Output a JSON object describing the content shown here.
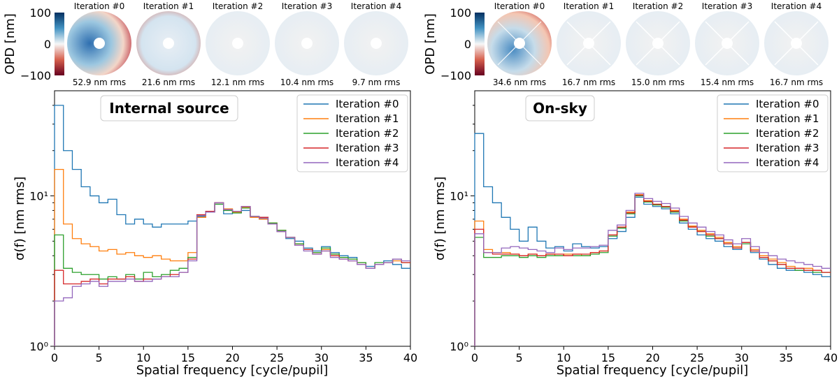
{
  "colors": {
    "iter0": "#1f77b4",
    "iter1": "#ff7f0e",
    "iter2": "#2ca02c",
    "iter3": "#d62728",
    "iter4": "#9467bd",
    "cmap_low": "#67001f",
    "cmap_mid": "#f7f7f7",
    "cmap_high": "#053061"
  },
  "colorbar": {
    "label": "OPD [nm]",
    "ticks": [
      "100",
      "0",
      "−100"
    ]
  },
  "panels": [
    {
      "id": "internal",
      "title": "Internal source",
      "maps": [
        {
          "label": "Iteration #0",
          "rms": "52.9 nm rms"
        },
        {
          "label": "Iteration #1",
          "rms": "21.6 nm rms"
        },
        {
          "label": "Iteration #2",
          "rms": "12.1 nm rms"
        },
        {
          "label": "Iteration #3",
          "rms": "10.4 nm rms"
        },
        {
          "label": "Iteration #4",
          "rms": "9.7 nm rms"
        }
      ]
    },
    {
      "id": "onsky",
      "title": "On-sky",
      "maps": [
        {
          "label": "Iteration #0",
          "rms": "34.6 nm rms"
        },
        {
          "label": "Iteration #1",
          "rms": "16.7 nm rms"
        },
        {
          "label": "Iteration #2",
          "rms": "15.0 nm rms"
        },
        {
          "label": "Iteration #3",
          "rms": "15.4 nm rms"
        },
        {
          "label": "Iteration #4",
          "rms": "16.7 nm rms"
        }
      ]
    }
  ],
  "chart_data": [
    {
      "type": "line",
      "step": true,
      "title": "Internal source",
      "xlabel": "Spatial frequency [cycle/pupil]",
      "ylabel": "σ(f) [nm rms]",
      "xlim": [
        0,
        40
      ],
      "ylim": [
        1,
        50
      ],
      "yscale": "log",
      "xticks": [
        "0",
        "5",
        "10",
        "15",
        "20",
        "25",
        "30",
        "35",
        "40"
      ],
      "yticks": [
        "10⁰",
        "10¹"
      ],
      "legend": "top-right",
      "x": [
        0,
        1,
        2,
        3,
        4,
        5,
        6,
        7,
        8,
        9,
        10,
        11,
        12,
        13,
        14,
        15,
        16,
        17,
        18,
        19,
        20,
        21,
        22,
        23,
        24,
        25,
        26,
        27,
        28,
        29,
        30,
        31,
        32,
        33,
        34,
        35,
        36,
        37,
        38,
        39
      ],
      "series": [
        {
          "name": "Iteration #0",
          "values": [
            40,
            20,
            15,
            11.5,
            10,
            9,
            9.5,
            7.5,
            6.5,
            7,
            6.5,
            6.2,
            6.5,
            6.5,
            6.5,
            6.8,
            7.3,
            7.8,
            8.8,
            7.6,
            7.7,
            8,
            7.3,
            7.2,
            6.5,
            5.8,
            5.2,
            5.0,
            4.5,
            4.3,
            4.6,
            4.2,
            4.0,
            3.9,
            3.6,
            3.4,
            3.5,
            3.7,
            3.5,
            3.3
          ]
        },
        {
          "name": "Iteration #1",
          "values": [
            15,
            6.5,
            5.2,
            4.8,
            4.6,
            4.3,
            4.4,
            4.1,
            4.2,
            4.0,
            3.9,
            4.0,
            3.8,
            3.7,
            3.7,
            4.2,
            7.2,
            7.8,
            9.0,
            8.2,
            7.8,
            8.4,
            7.2,
            7.0,
            6.6,
            5.9,
            5.3,
            4.8,
            4.4,
            4.2,
            4.4,
            4.1,
            3.9,
            3.8,
            3.6,
            3.3,
            3.5,
            3.6,
            3.7,
            3.6
          ]
        },
        {
          "name": "Iteration #2",
          "values": [
            5.5,
            3.3,
            3.1,
            3.0,
            3.0,
            2.8,
            2.9,
            2.8,
            3.0,
            2.8,
            3.1,
            2.9,
            3.0,
            3.2,
            3.3,
            3.9,
            7.4,
            7.9,
            8.8,
            8.0,
            7.7,
            8.3,
            7.3,
            7.1,
            6.6,
            5.9,
            5.3,
            4.8,
            4.4,
            4.2,
            4.5,
            4.1,
            3.9,
            3.8,
            3.6,
            3.3,
            3.6,
            3.6,
            3.8,
            3.6
          ]
        },
        {
          "name": "Iteration #3",
          "values": [
            3.2,
            2.6,
            2.6,
            2.7,
            2.8,
            2.6,
            2.8,
            2.8,
            2.9,
            2.7,
            2.8,
            2.8,
            2.9,
            3.0,
            3.1,
            3.8,
            7.5,
            7.9,
            9.0,
            8.1,
            7.9,
            8.5,
            7.3,
            7.2,
            6.5,
            5.8,
            5.3,
            4.7,
            4.4,
            4.1,
            4.3,
            4.0,
            3.8,
            3.7,
            3.5,
            3.3,
            3.5,
            3.6,
            3.8,
            3.6
          ]
        },
        {
          "name": "Iteration #4",
          "values": [
            2.0,
            2.1,
            2.5,
            2.6,
            2.7,
            2.5,
            2.7,
            2.7,
            2.8,
            2.7,
            2.7,
            2.8,
            2.9,
            2.9,
            3.1,
            3.7,
            7.4,
            7.8,
            9.0,
            8.1,
            7.9,
            8.5,
            7.3,
            7.1,
            6.5,
            5.8,
            5.3,
            4.7,
            4.3,
            4.1,
            4.3,
            3.9,
            3.8,
            3.7,
            3.5,
            3.3,
            3.5,
            3.6,
            3.8,
            3.7
          ]
        }
      ]
    },
    {
      "type": "line",
      "step": true,
      "title": "On-sky",
      "xlabel": "Spatial frequency [cycle/pupil]",
      "ylabel": "σ(f) [nm rms]",
      "xlim": [
        0,
        40
      ],
      "ylim": [
        1,
        50
      ],
      "yscale": "log",
      "xticks": [
        "0",
        "5",
        "10",
        "15",
        "20",
        "25",
        "30",
        "35",
        "40"
      ],
      "yticks": [
        "10⁰",
        "10¹"
      ],
      "legend": "top-right",
      "x": [
        0,
        1,
        2,
        3,
        4,
        5,
        6,
        7,
        8,
        9,
        10,
        11,
        12,
        13,
        14,
        15,
        16,
        17,
        18,
        19,
        20,
        21,
        22,
        23,
        24,
        25,
        26,
        27,
        28,
        29,
        30,
        31,
        32,
        33,
        34,
        35,
        36,
        37,
        38,
        39
      ],
      "series": [
        {
          "name": "Iteration #0",
          "values": [
            26,
            11.5,
            9,
            7.2,
            6.0,
            5.0,
            6.2,
            5.0,
            4.5,
            4.6,
            4.3,
            4.8,
            4.6,
            4.5,
            4.6,
            5.2,
            5.8,
            7.2,
            9.8,
            8.8,
            8.5,
            8.2,
            7.6,
            6.6,
            6.0,
            5.5,
            5.2,
            5.0,
            4.6,
            4.4,
            4.9,
            4.2,
            3.8,
            3.5,
            3.3,
            3.2,
            3.2,
            3.1,
            3.0,
            2.9
          ]
        },
        {
          "name": "Iteration #1",
          "values": [
            6.8,
            4.4,
            4.2,
            4.2,
            4.1,
            4.0,
            4.1,
            4.0,
            4.1,
            4.0,
            4.1,
            4.1,
            4.0,
            4.2,
            4.3,
            5.5,
            6.2,
            7.8,
            10.2,
            9.3,
            8.8,
            8.5,
            8.0,
            7.0,
            6.3,
            5.9,
            5.6,
            5.3,
            4.9,
            4.6,
            4.9,
            4.4,
            4.0,
            3.8,
            3.6,
            3.4,
            3.3,
            3.3,
            3.2,
            3.1
          ]
        },
        {
          "name": "Iteration #2",
          "values": [
            5.3,
            3.9,
            3.9,
            4.0,
            4.0,
            3.9,
            4.0,
            3.9,
            4.0,
            4.0,
            4.0,
            4.0,
            4.0,
            4.1,
            4.2,
            5.4,
            6.1,
            7.6,
            10.0,
            9.1,
            8.7,
            8.4,
            7.8,
            6.8,
            6.2,
            5.8,
            5.4,
            5.2,
            4.8,
            4.5,
            4.8,
            4.3,
            3.9,
            3.7,
            3.5,
            3.3,
            3.2,
            3.2,
            3.1,
            3.1
          ]
        },
        {
          "name": "Iteration #3",
          "values": [
            6.0,
            4.2,
            4.1,
            4.1,
            4.1,
            4.0,
            4.1,
            4.0,
            4.1,
            4.1,
            4.0,
            4.1,
            4.1,
            4.2,
            4.3,
            5.5,
            6.2,
            7.7,
            10.1,
            9.2,
            8.8,
            8.5,
            7.9,
            6.9,
            6.2,
            5.8,
            5.5,
            5.2,
            4.8,
            4.5,
            4.9,
            4.3,
            3.9,
            3.7,
            3.5,
            3.3,
            3.3,
            3.2,
            3.2,
            3.1
          ]
        },
        {
          "name": "Iteration #4",
          "values": [
            5.6,
            4.2,
            4.2,
            4.5,
            4.6,
            4.5,
            4.4,
            4.3,
            4.2,
            4.5,
            4.4,
            4.5,
            4.5,
            4.6,
            4.7,
            5.9,
            6.4,
            8.0,
            10.4,
            9.6,
            9.2,
            8.9,
            8.3,
            7.3,
            6.6,
            6.2,
            5.8,
            5.5,
            5.1,
            4.8,
            5.2,
            4.6,
            4.2,
            4.0,
            3.8,
            3.7,
            3.6,
            3.5,
            3.4,
            3.3
          ]
        }
      ]
    }
  ]
}
